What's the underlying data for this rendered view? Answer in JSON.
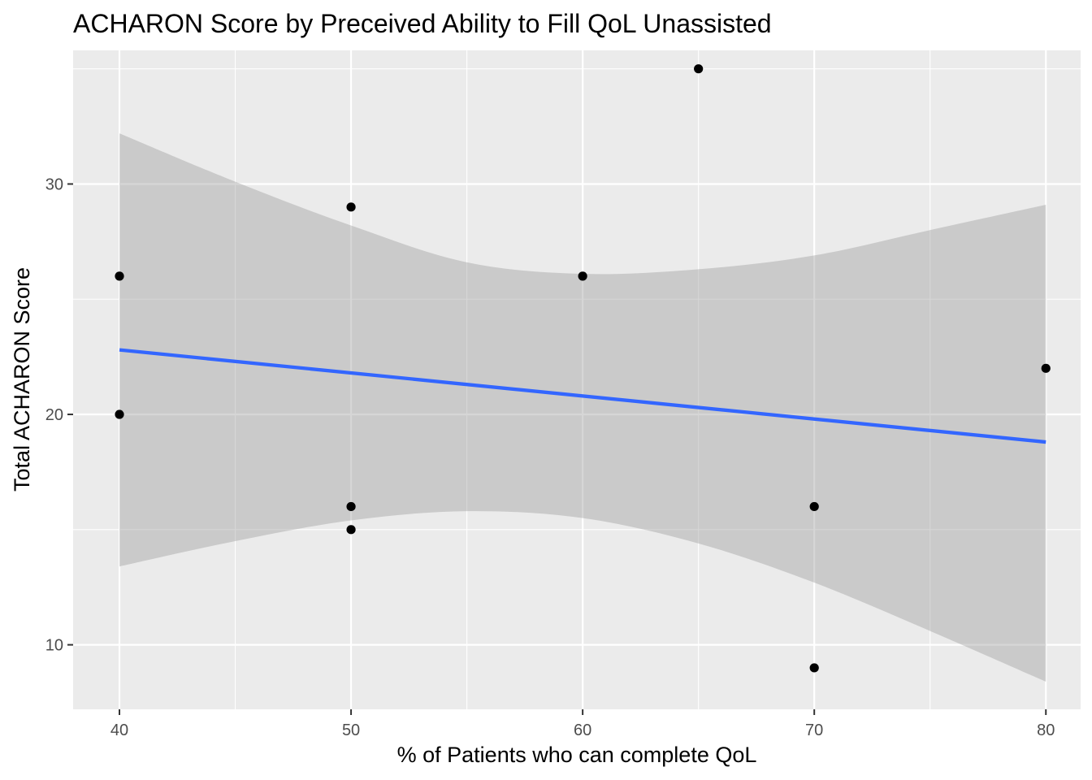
{
  "chart_data": {
    "type": "scatter",
    "title": "ACHARON Score by Preceived Ability to Fill QoL Unassisted",
    "xlabel": "% of Patients who can complete QoL",
    "ylabel": "Total ACHARON Score",
    "xlim": [
      38,
      81.5
    ],
    "ylim": [
      7.2,
      35.8
    ],
    "x_ticks": [
      40,
      50,
      60,
      70,
      80
    ],
    "y_ticks": [
      10,
      20,
      30
    ],
    "x_tick_labels": [
      "40",
      "50",
      "60",
      "70",
      "80"
    ],
    "y_tick_labels": [
      "10",
      "20",
      "30"
    ],
    "x_minor_ticks": [
      45,
      55,
      65,
      75
    ],
    "y_minor_ticks": [
      15,
      25,
      35
    ],
    "grid": true,
    "legend": "none",
    "points": [
      {
        "x": 40,
        "y": 26
      },
      {
        "x": 40,
        "y": 20
      },
      {
        "x": 50,
        "y": 29
      },
      {
        "x": 50,
        "y": 16
      },
      {
        "x": 50,
        "y": 15
      },
      {
        "x": 60,
        "y": 26
      },
      {
        "x": 65,
        "y": 35
      },
      {
        "x": 70,
        "y": 16
      },
      {
        "x": 70,
        "y": 9
      },
      {
        "x": 80,
        "y": 22
      }
    ],
    "fit_line": {
      "method": "linear",
      "x": [
        40,
        80
      ],
      "y": [
        22.8,
        18.8
      ]
    },
    "confidence_band": {
      "x": [
        40,
        45,
        50,
        55,
        60,
        65,
        70,
        75,
        80
      ],
      "lower": [
        13.4,
        14.5,
        15.4,
        15.8,
        15.5,
        14.4,
        12.7,
        10.6,
        8.4
      ],
      "upper": [
        32.2,
        30.1,
        28.2,
        26.6,
        26.1,
        26.3,
        26.9,
        28.0,
        29.1
      ]
    },
    "colors": {
      "panel_background": "#ebebeb",
      "grid_major": "#ffffff",
      "point": "#000000",
      "fit_line": "#3366ff",
      "band": "#999999"
    }
  }
}
